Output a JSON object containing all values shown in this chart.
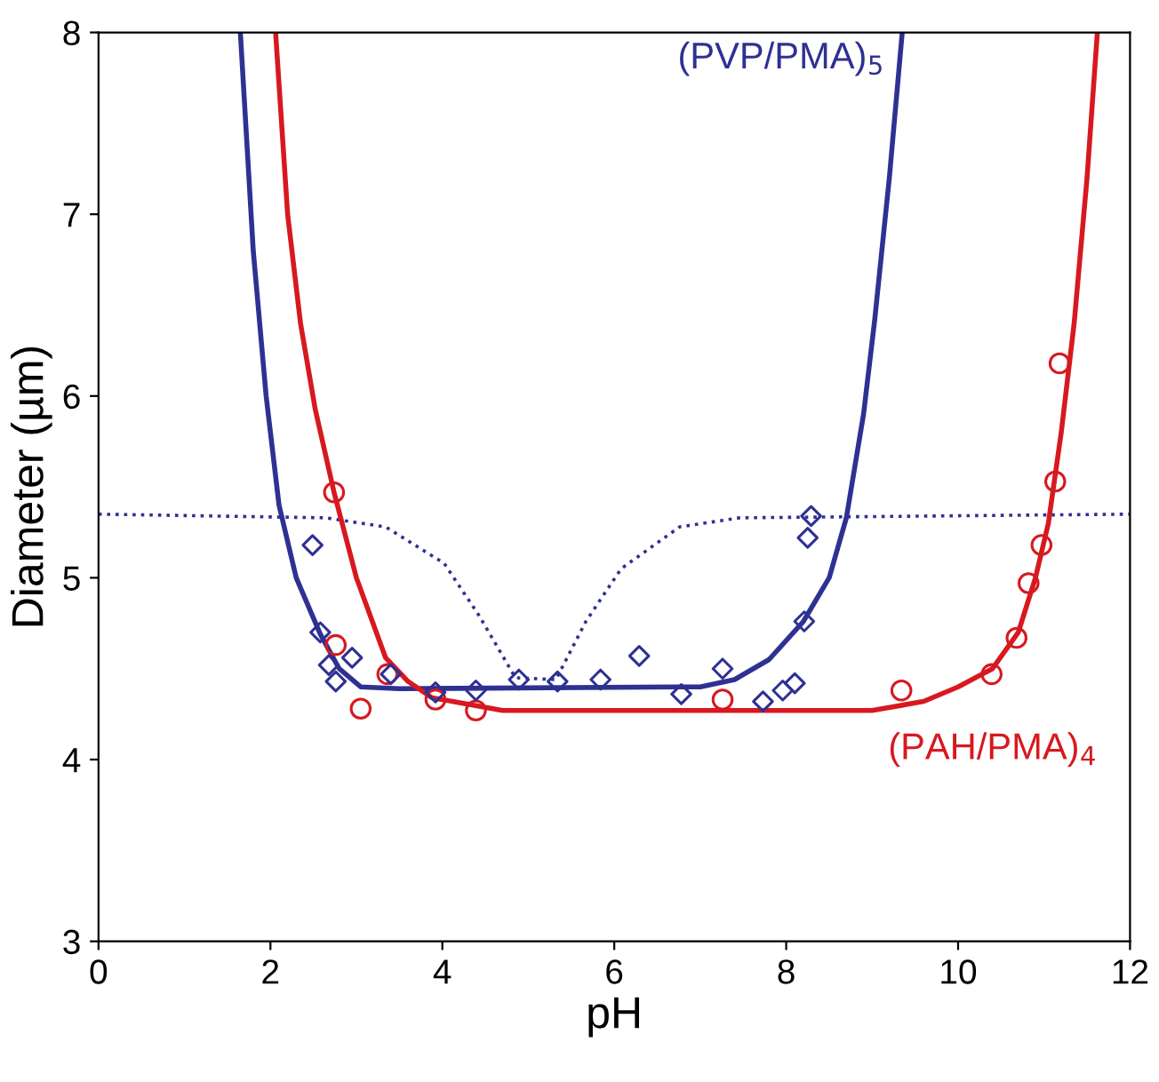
{
  "chart_data": {
    "type": "line",
    "xlabel": "pH",
    "ylabel": "Diameter (µm)",
    "xlim": [
      0,
      12
    ],
    "ylim": [
      3,
      8
    ],
    "xticks": [
      0,
      2,
      4,
      6,
      8,
      10,
      12
    ],
    "yticks": [
      3,
      4,
      5,
      6,
      7,
      8
    ],
    "grid": false,
    "legend": false,
    "series": [
      {
        "type": "scatter",
        "marker": "diamond",
        "color": "#2e3192",
        "x": [
          2.49,
          2.58,
          2.68,
          2.76,
          2.95,
          3.4,
          3.92,
          4.39,
          4.89,
          5.34,
          5.84,
          6.29,
          6.78,
          7.26,
          7.73,
          7.96,
          8.1,
          8.21,
          8.25,
          8.29
        ],
        "values": [
          5.18,
          4.7,
          4.52,
          4.43,
          4.56,
          4.47,
          4.37,
          4.38,
          4.44,
          4.43,
          4.44,
          4.57,
          4.36,
          4.5,
          4.32,
          4.38,
          4.42,
          4.76,
          5.22,
          5.34
        ]
      },
      {
        "type": "scatter",
        "marker": "circle",
        "color": "#d7191f",
        "x": [
          2.74,
          2.76,
          3.05,
          3.36,
          3.92,
          4.39,
          7.26,
          9.34,
          10.39,
          10.68,
          10.82,
          10.97,
          11.13,
          11.18
        ],
        "values": [
          5.47,
          4.63,
          4.28,
          4.47,
          4.33,
          4.27,
          4.33,
          4.38,
          4.47,
          4.67,
          4.97,
          5.18,
          5.53,
          6.18
        ]
      },
      {
        "line_style": "dotted",
        "color": "#2e3192",
        "x": [
          0,
          2.64,
          3.34,
          4.02,
          4.43,
          4.85,
          5.32,
          5.67,
          6.08,
          6.76,
          7.46,
          12
        ],
        "values": [
          5.35,
          5.33,
          5.28,
          5.08,
          4.79,
          4.45,
          4.44,
          4.76,
          5.05,
          5.28,
          5.33,
          5.35
        ]
      },
      {
        "line_style": "solid",
        "name": "(PVP/PMA)$_{5}$",
        "color": "#2e3192",
        "x": [
          1.65,
          1.8,
          1.95,
          2.1,
          2.3,
          2.58,
          2.8,
          3.05,
          3.5,
          7.0,
          7.4,
          7.8,
          8.2,
          8.5,
          8.7,
          8.9,
          9.03,
          9.2,
          9.35
        ],
        "values": [
          8.0,
          6.8,
          6.0,
          5.4,
          5.0,
          4.69,
          4.5,
          4.4,
          4.39,
          4.4,
          4.44,
          4.55,
          4.76,
          5.0,
          5.33,
          5.9,
          6.42,
          7.2,
          8.0
        ]
      },
      {
        "line_style": "solid",
        "name": "(PAH/PMA)$_{4}$",
        "color": "#d7191f",
        "x": [
          2.06,
          2.2,
          2.35,
          2.52,
          2.74,
          3.0,
          3.34,
          3.6,
          3.88,
          4.7,
          9.0,
          9.6,
          10.0,
          10.4,
          10.7,
          10.9,
          11.05,
          11.2,
          11.35,
          11.5,
          11.62
        ],
        "values": [
          8.0,
          7.0,
          6.4,
          5.93,
          5.47,
          5.0,
          4.56,
          4.43,
          4.34,
          4.27,
          4.27,
          4.32,
          4.4,
          4.5,
          4.7,
          5.0,
          5.3,
          5.8,
          6.4,
          7.2,
          8.0
        ]
      }
    ]
  }
}
